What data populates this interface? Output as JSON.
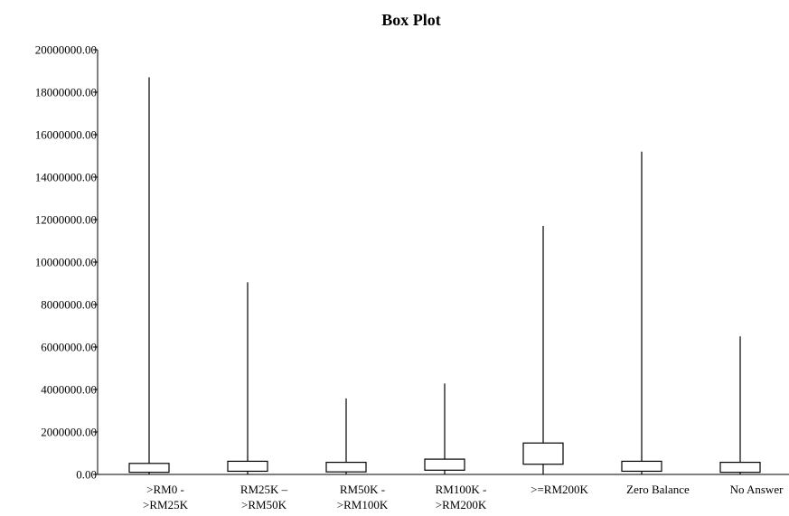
{
  "chart_data": {
    "type": "box",
    "title": "Box Plot",
    "xlabel": "",
    "ylabel": "",
    "ylim": [
      0,
      20000000
    ],
    "yticks": [
      0,
      2000000,
      4000000,
      6000000,
      8000000,
      10000000,
      12000000,
      14000000,
      16000000,
      18000000,
      20000000
    ],
    "ytick_labels": [
      "0.00",
      "2000000.00",
      "4000000.00",
      "6000000.00",
      "8000000.00",
      "10000000.00",
      "12000000.00",
      "14000000.00",
      "16000000.00",
      "18000000.00",
      "20000000.00"
    ],
    "grid": false,
    "categories": [
      [
        ">RM0 -",
        ">RM25K"
      ],
      [
        "RM25K –",
        ">RM50K"
      ],
      [
        "RM50K -",
        ">RM100K"
      ],
      [
        "RM100K -",
        ">RM200K"
      ],
      [
        ">=RM200K"
      ],
      [
        "Zero Balance"
      ],
      [
        "No Answer"
      ]
    ],
    "boxes": [
      {
        "min": 0,
        "q1": 100000,
        "q3": 520000,
        "max": 18700000
      },
      {
        "min": 0,
        "q1": 150000,
        "q3": 620000,
        "max": 9050000
      },
      {
        "min": 0,
        "q1": 120000,
        "q3": 570000,
        "max": 3580000
      },
      {
        "min": 0,
        "q1": 200000,
        "q3": 720000,
        "max": 4280000
      },
      {
        "min": 0,
        "q1": 480000,
        "q3": 1480000,
        "max": 11700000
      },
      {
        "min": 0,
        "q1": 150000,
        "q3": 620000,
        "max": 15200000
      },
      {
        "min": 0,
        "q1": 100000,
        "q3": 570000,
        "max": 6500000
      }
    ]
  }
}
